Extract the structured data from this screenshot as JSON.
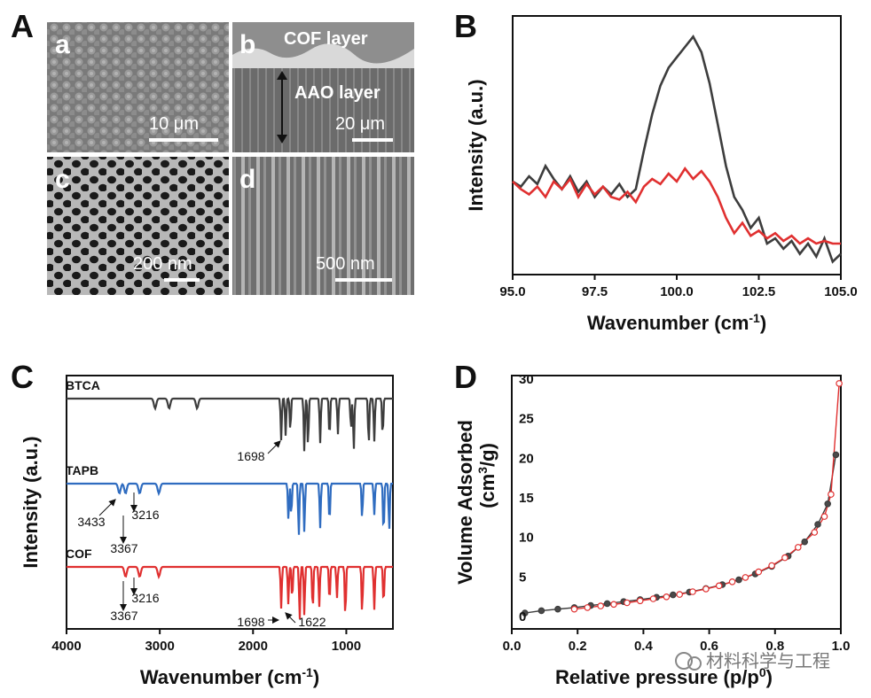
{
  "panels": {
    "A": {
      "label": "A",
      "subpanels": [
        {
          "letter": "a",
          "scalebar": "10 μm"
        },
        {
          "letter": "b",
          "scalebar": "20 μm",
          "top_label": "COF layer",
          "mid_label": "AAO layer"
        },
        {
          "letter": "c",
          "scalebar": "200 nm"
        },
        {
          "letter": "d",
          "scalebar": "500 nm"
        }
      ]
    },
    "B": {
      "label": "B"
    },
    "C": {
      "label": "C"
    },
    "D": {
      "label": "D"
    }
  },
  "watermark": "材料科学与工程",
  "colors": {
    "black_series": "#3d3d3d",
    "red_series": "#e03030",
    "blue_series": "#2f6cc0"
  },
  "chart_data": [
    {
      "panel": "B",
      "type": "line",
      "title": "",
      "xlabel": "Wavenumber (cm⁻¹)",
      "ylabel": "Intensity (a.u.)",
      "xlim": [
        95.0,
        105.0
      ],
      "ylim": [
        0,
        1
      ],
      "xticks": [
        "95.0",
        "97.5",
        "100.0",
        "102.5",
        "105.0"
      ],
      "series": [
        {
          "name": "black",
          "color": "#3d3d3d",
          "x": [
            95.0,
            95.25,
            95.5,
            95.75,
            96.0,
            96.25,
            96.5,
            96.75,
            97.0,
            97.25,
            97.5,
            97.75,
            98.0,
            98.25,
            98.5,
            98.75,
            99.0,
            99.25,
            99.5,
            99.75,
            100.0,
            100.25,
            100.5,
            100.75,
            101.0,
            101.25,
            101.5,
            101.75,
            102.0,
            102.25,
            102.5,
            102.75,
            103.0,
            103.25,
            103.5,
            103.75,
            104.0,
            104.25,
            104.5,
            104.75,
            105.0
          ],
          "y": [
            0.36,
            0.34,
            0.38,
            0.35,
            0.42,
            0.37,
            0.33,
            0.38,
            0.32,
            0.36,
            0.3,
            0.34,
            0.31,
            0.35,
            0.3,
            0.33,
            0.48,
            0.62,
            0.73,
            0.8,
            0.84,
            0.88,
            0.92,
            0.86,
            0.74,
            0.58,
            0.42,
            0.3,
            0.25,
            0.18,
            0.22,
            0.12,
            0.14,
            0.1,
            0.13,
            0.08,
            0.12,
            0.07,
            0.14,
            0.05,
            0.08
          ]
        },
        {
          "name": "red",
          "color": "#e03030",
          "x": [
            95.0,
            95.25,
            95.5,
            95.75,
            96.0,
            96.25,
            96.5,
            96.75,
            97.0,
            97.25,
            97.5,
            97.75,
            98.0,
            98.25,
            98.5,
            98.75,
            99.0,
            99.25,
            99.5,
            99.75,
            100.0,
            100.25,
            100.5,
            100.75,
            101.0,
            101.25,
            101.5,
            101.75,
            102.0,
            102.25,
            102.5,
            102.75,
            103.0,
            103.25,
            103.5,
            103.75,
            104.0,
            104.25,
            104.5,
            104.75,
            105.0
          ],
          "y": [
            0.36,
            0.33,
            0.31,
            0.34,
            0.3,
            0.36,
            0.33,
            0.37,
            0.3,
            0.35,
            0.31,
            0.34,
            0.3,
            0.29,
            0.32,
            0.28,
            0.34,
            0.37,
            0.35,
            0.39,
            0.36,
            0.41,
            0.37,
            0.4,
            0.36,
            0.3,
            0.22,
            0.16,
            0.2,
            0.15,
            0.17,
            0.14,
            0.16,
            0.13,
            0.15,
            0.12,
            0.14,
            0.12,
            0.13,
            0.12,
            0.12
          ]
        }
      ]
    },
    {
      "panel": "C",
      "type": "line",
      "title": "",
      "xlabel": "Wavenumber (cm⁻¹)",
      "ylabel": "Intensity (a.u.)",
      "xlim": [
        4000,
        500
      ],
      "xticks": [
        "4000",
        "3000",
        "2000",
        "1000"
      ],
      "series": [
        {
          "name": "BTCA",
          "color": "#3d3d3d",
          "peaks": [
            3050,
            2900,
            2600,
            1698,
            1650,
            1600,
            1450,
            1410,
            1280,
            1180,
            1090,
            950,
            920,
            760,
            700,
            610
          ]
        },
        {
          "name": "TAPB",
          "color": "#2f6cc0",
          "peaks": [
            3433,
            3367,
            3216,
            3010,
            1620,
            1590,
            1510,
            1450,
            1280,
            1180,
            830,
            700,
            600,
            540
          ]
        },
        {
          "name": "COF",
          "color": "#e03030",
          "peaks": [
            3367,
            3216,
            3010,
            1698,
            1622,
            1580,
            1500,
            1450,
            1360,
            1290,
            1180,
            1100,
            1010,
            830,
            700,
            600
          ]
        }
      ],
      "annotations": [
        "1698",
        "3433",
        "3216",
        "3367",
        "3216",
        "3367",
        "1698",
        "1622"
      ]
    },
    {
      "panel": "D",
      "type": "scatter",
      "title": "",
      "xlabel": "Relative pressure (p/p⁰)",
      "ylabel": "Volume Adsorbed (cm³/g)",
      "xlim": [
        0.0,
        1.0
      ],
      "ylim": [
        0,
        32
      ],
      "xticks": [
        "0.0",
        "0.2",
        "0.4",
        "0.6",
        "0.8",
        "1.0"
      ],
      "yticks": [
        "0",
        "5",
        "10",
        "15",
        "20",
        "25",
        "30"
      ],
      "series": [
        {
          "name": "adsorption",
          "color": "#3d3d3d",
          "marker": "filled",
          "x": [
            0.04,
            0.09,
            0.14,
            0.19,
            0.24,
            0.29,
            0.34,
            0.39,
            0.44,
            0.49,
            0.54,
            0.59,
            0.64,
            0.69,
            0.74,
            0.79,
            0.84,
            0.89,
            0.93,
            0.96,
            0.985
          ],
          "y": [
            2.0,
            2.3,
            2.5,
            2.7,
            2.95,
            3.2,
            3.45,
            3.7,
            4.0,
            4.3,
            4.65,
            5.1,
            5.6,
            6.2,
            6.95,
            7.9,
            9.2,
            11.0,
            13.2,
            15.8,
            22.0
          ]
        },
        {
          "name": "desorption",
          "color": "#e03030",
          "marker": "open",
          "x": [
            0.995,
            0.97,
            0.95,
            0.92,
            0.87,
            0.83,
            0.79,
            0.75,
            0.71,
            0.67,
            0.63,
            0.59,
            0.55,
            0.51,
            0.47,
            0.43,
            0.39,
            0.35,
            0.31,
            0.27,
            0.23,
            0.19
          ],
          "y": [
            31.0,
            17.0,
            14.2,
            12.2,
            10.3,
            9.0,
            8.0,
            7.2,
            6.5,
            5.95,
            5.45,
            5.05,
            4.7,
            4.35,
            4.05,
            3.8,
            3.55,
            3.3,
            3.1,
            2.9,
            2.7,
            2.5
          ]
        }
      ]
    }
  ]
}
